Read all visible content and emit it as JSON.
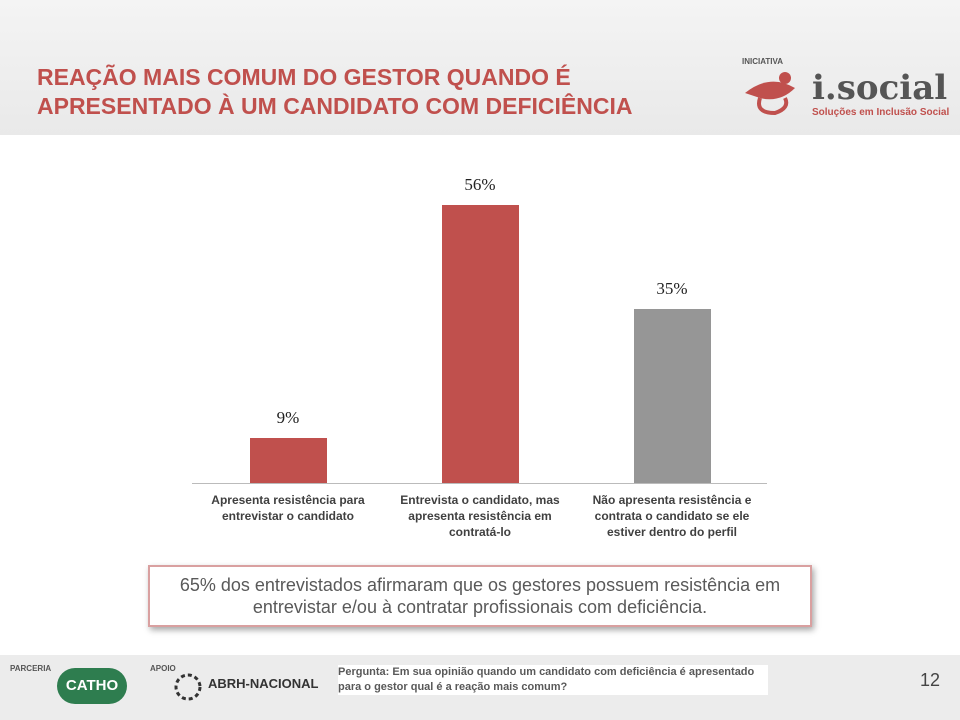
{
  "header": {
    "title": [
      "REAÇÃO MAIS COMUM DO GESTOR QUANDO É",
      "APRESENTADO À UM CANDIDATO COM DEFICIÊNCIA"
    ],
    "logo_caption": "INICIATIVA",
    "logo": "i.social",
    "logo_subtitle": "Soluções em Inclusão Social"
  },
  "chart_data": {
    "type": "bar",
    "categories": [
      "Apresenta resistência para entrevistar o candidato",
      "Entrevista o candidato, mas apresenta resistência em contratá-lo",
      "Não apresenta resistência e contrata o candidato se ele estiver dentro do perfil"
    ],
    "values": [
      9,
      56,
      35
    ],
    "value_labels": [
      "9%",
      "56%",
      "35%"
    ],
    "colors": [
      "#c0504d",
      "#c0504d",
      "#969696"
    ]
  },
  "callout": "65% dos entrevistados afirmaram que os gestores possuem resistência em entrevistar e/ou à contratar profissionais com deficiência.",
  "footer": {
    "partner_caption": "PARCERIA",
    "partner": "CATHO",
    "support_caption": "APOIO",
    "support": "ABRH-NACIONAL",
    "question": "Pergunta: Em sua opinião quando um candidato com deficiência é apresentado para o gestor qual é a reação mais comum?",
    "page": "12"
  }
}
